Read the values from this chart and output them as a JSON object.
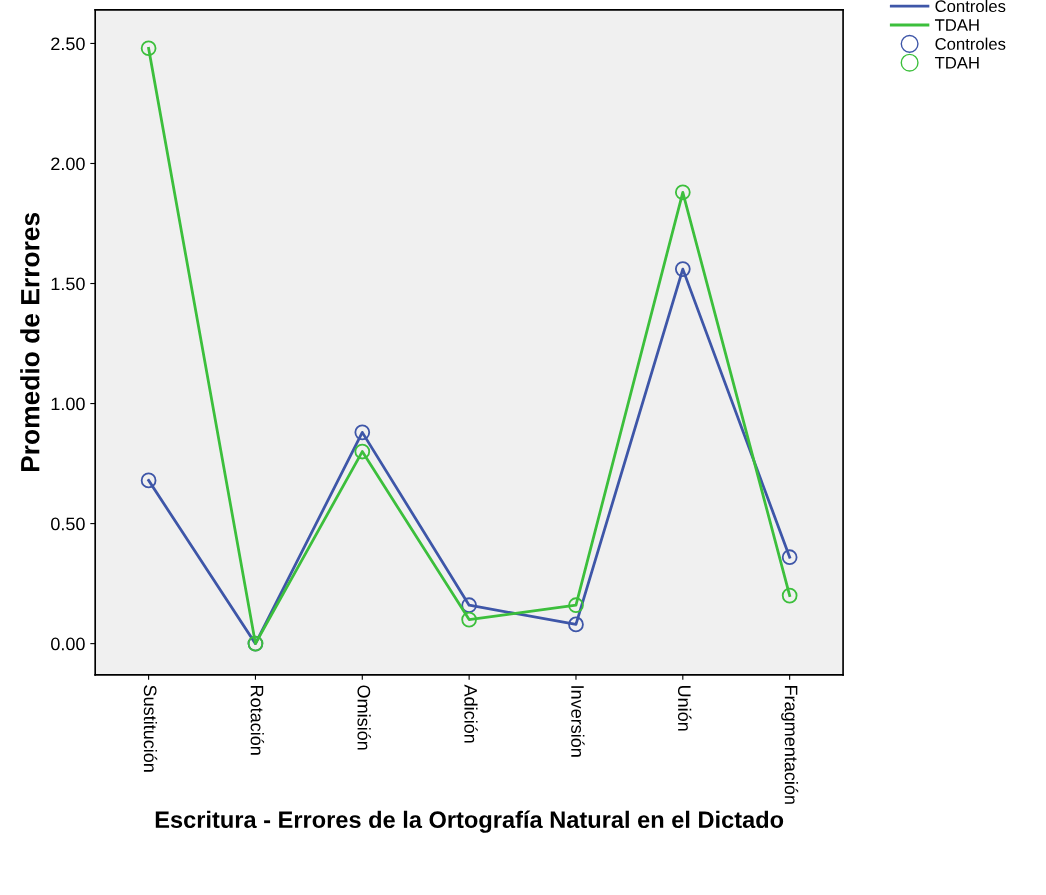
{
  "chart_data": {
    "type": "line",
    "xlabel": "Escritura - Errores de la Ortografía Natural en el Dictado",
    "ylabel": "Promedio de Errores",
    "categories": [
      "Sustitución",
      "Rotación",
      "Omisión",
      "Adición",
      "Inversión",
      "Unión",
      "Fragmentación"
    ],
    "series": [
      {
        "name": "Controles",
        "color": "#3e56a8",
        "values": [
          0.68,
          0.0,
          0.88,
          0.16,
          0.08,
          1.56,
          0.36
        ]
      },
      {
        "name": "TDAH",
        "color": "#3cbf3c",
        "values": [
          2.48,
          0.0,
          0.8,
          0.1,
          0.16,
          1.88,
          0.2
        ]
      }
    ],
    "ylim": [
      -0.13,
      2.64
    ],
    "yticks": [
      {
        "value": 0,
        "label": "0.00"
      },
      {
        "value": 0.5,
        "label": "0.50"
      },
      {
        "value": 1,
        "label": "1.00"
      },
      {
        "value": 1.5,
        "label": "1.50"
      },
      {
        "value": 2,
        "label": "2.00"
      },
      {
        "value": 2.5,
        "label": "2.50"
      }
    ],
    "marker": "circle",
    "line_style": "solid",
    "grid": false,
    "legend": "top right"
  }
}
